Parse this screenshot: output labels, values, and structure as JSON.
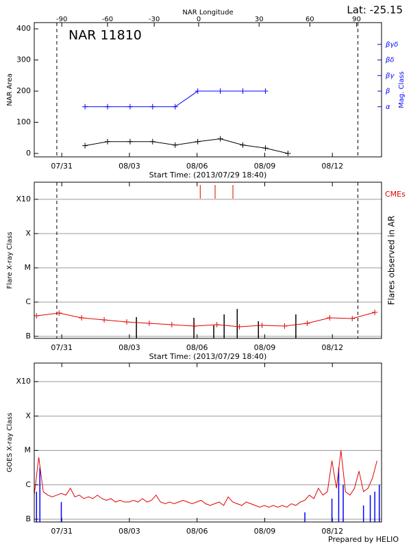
{
  "lat": "Lat: -25.15",
  "credit": "Prepared by HELIO",
  "chart_data": [
    {
      "type": "line",
      "title": "NAR 11810",
      "xlabel": "Start Time: (2013/07/29 18:40)",
      "ylabel": "NAR Area",
      "y2label": "Mag. Class",
      "x2label": "NAR Longitude",
      "xlim": [
        0,
        15.4
      ],
      "xticks": [
        {
          "value": 1.22,
          "label": "07/31"
        },
        {
          "value": 4.22,
          "label": "08/03"
        },
        {
          "value": 7.22,
          "label": "08/06"
        },
        {
          "value": 10.22,
          "label": "08/09"
        },
        {
          "value": 13.22,
          "label": "08/12"
        }
      ],
      "x2ticks": [
        {
          "value": 1.22,
          "label": "-90"
        },
        {
          "value": 3.25,
          "label": "-60"
        },
        {
          "value": 5.32,
          "label": "-30"
        },
        {
          "value": 7.29,
          "label": "0"
        },
        {
          "value": 9.97,
          "label": "30"
        },
        {
          "value": 12.22,
          "label": "60"
        },
        {
          "value": 14.29,
          "label": "90"
        }
      ],
      "ylim": [
        -11,
        420
      ],
      "yticks": [
        0,
        100,
        200,
        300,
        400
      ],
      "y2lim": [
        -11,
        420
      ],
      "y2ticks": [
        {
          "value": 150,
          "label": "α"
        },
        {
          "value": 200,
          "label": "β"
        },
        {
          "value": 250,
          "label": "βγ"
        },
        {
          "value": 300,
          "label": "βδ"
        },
        {
          "value": 350,
          "label": "βγδ"
        }
      ],
      "y2color": "#0000ff",
      "grid": false,
      "vlines": [
        1.0,
        14.35
      ],
      "series": [
        {
          "color": "#000000",
          "marker": "plus",
          "x": [
            2.25,
            3.25,
            4.25,
            5.25,
            6.25,
            7.25,
            8.25,
            9.25,
            10.25,
            11.25
          ],
          "values": [
            25,
            38,
            38,
            38,
            27,
            38,
            47,
            27,
            17,
            0
          ]
        },
        {
          "color": "#0000ff",
          "marker": "plus",
          "axis": "y2",
          "x": [
            2.25,
            3.25,
            4.25,
            5.25,
            6.25,
            7.25,
            8.25,
            9.25,
            10.25
          ],
          "values": [
            150,
            150,
            150,
            150,
            150,
            200,
            200,
            200,
            200
          ]
        }
      ]
    },
    {
      "type": "line",
      "xlabel": "Start Time: (2013/07/29 18:40)",
      "ylabel": "Flare X-ray Class",
      "y2label": "Flares observed in AR",
      "xlim": [
        0,
        15.4
      ],
      "xticks": [
        {
          "value": 1.22,
          "label": "07/31"
        },
        {
          "value": 4.22,
          "label": "08/03"
        },
        {
          "value": 7.22,
          "label": "08/06"
        },
        {
          "value": 10.22,
          "label": "08/09"
        },
        {
          "value": 13.22,
          "label": "08/12"
        }
      ],
      "ylim": [
        -7.06,
        -2.5
      ],
      "yticks": [
        {
          "value": -7,
          "label": "B"
        },
        {
          "value": -6,
          "label": "C"
        },
        {
          "value": -5,
          "label": "M"
        },
        {
          "value": -4,
          "label": "X"
        },
        {
          "value": -3,
          "label": "X10"
        }
      ],
      "grid": true,
      "vlines": [
        1.0,
        14.35
      ],
      "series": [
        {
          "color": "#e00000",
          "marker": "plus",
          "x": [
            0.1,
            1.1,
            2.1,
            3.1,
            4.1,
            5.1,
            6.1,
            7.1,
            8.1,
            9.1,
            10.1,
            11.1,
            12.1,
            13.1,
            14.1,
            15.1
          ],
          "values": [
            -6.4,
            -6.32,
            -6.46,
            -6.52,
            -6.58,
            -6.62,
            -6.66,
            -6.7,
            -6.66,
            -6.72,
            -6.68,
            -6.7,
            -6.62,
            -6.46,
            -6.48,
            -6.3
          ]
        }
      ],
      "bars": {
        "color": "#000000",
        "x": [
          4.53,
          7.08,
          7.96,
          8.42,
          9.0,
          9.94,
          11.6
        ],
        "values": [
          -6.44,
          -6.46,
          -6.68,
          -6.36,
          -6.2,
          -6.56,
          -6.36
        ]
      },
      "events": {
        "label": "CMEs",
        "color": "#e00000",
        "x": [
          7.36,
          8.02,
          8.81
        ]
      }
    },
    {
      "type": "line",
      "ylabel": "GOES X-ray Class",
      "xlim": [
        0,
        15.4
      ],
      "xticks": [
        {
          "value": 1.22,
          "label": "07/31"
        },
        {
          "value": 4.22,
          "label": "08/03"
        },
        {
          "value": 7.22,
          "label": "08/06"
        },
        {
          "value": 10.22,
          "label": "08/09"
        },
        {
          "value": 13.22,
          "label": "08/12"
        }
      ],
      "ylim": [
        -7.08,
        -2.46
      ],
      "yticks": [
        {
          "value": -7,
          "label": "B"
        },
        {
          "value": -6,
          "label": "C"
        },
        {
          "value": -5,
          "label": "M"
        },
        {
          "value": -4,
          "label": "X"
        },
        {
          "value": -3,
          "label": "X10"
        }
      ],
      "grid": true,
      "series": [
        {
          "color": "#e00000",
          "x": [
            0,
            0.2,
            0.4,
            0.6,
            0.8,
            1.0,
            1.2,
            1.4,
            1.6,
            1.8,
            2.0,
            2.2,
            2.4,
            2.6,
            2.8,
            3.0,
            3.2,
            3.4,
            3.6,
            3.8,
            4.0,
            4.2,
            4.4,
            4.6,
            4.8,
            5.0,
            5.2,
            5.4,
            5.6,
            5.8,
            6.0,
            6.2,
            6.4,
            6.6,
            6.8,
            7.0,
            7.2,
            7.4,
            7.6,
            7.8,
            8.0,
            8.2,
            8.4,
            8.6,
            8.8,
            9.0,
            9.2,
            9.4,
            9.6,
            9.8,
            10.0,
            10.2,
            10.4,
            10.6,
            10.8,
            11.0,
            11.2,
            11.4,
            11.6,
            11.8,
            12.0,
            12.2,
            12.4,
            12.6,
            12.8,
            13.0,
            13.2,
            13.4,
            13.6,
            13.8,
            14.0,
            14.2,
            14.4,
            14.6,
            14.8,
            15.0,
            15.2
          ],
          "values": [
            -6.3,
            -5.2,
            -6.2,
            -6.3,
            -6.35,
            -6.3,
            -6.25,
            -6.3,
            -6.1,
            -6.35,
            -6.3,
            -6.4,
            -6.35,
            -6.4,
            -6.3,
            -6.4,
            -6.45,
            -6.4,
            -6.5,
            -6.45,
            -6.5,
            -6.5,
            -6.45,
            -6.5,
            -6.4,
            -6.5,
            -6.45,
            -6.3,
            -6.5,
            -6.55,
            -6.5,
            -6.55,
            -6.5,
            -6.45,
            -6.5,
            -6.55,
            -6.5,
            -6.45,
            -6.55,
            -6.6,
            -6.55,
            -6.5,
            -6.6,
            -6.35,
            -6.5,
            -6.55,
            -6.6,
            -6.5,
            -6.55,
            -6.6,
            -6.65,
            -6.6,
            -6.65,
            -6.6,
            -6.65,
            -6.6,
            -6.65,
            -6.55,
            -6.6,
            -6.5,
            -6.45,
            -6.3,
            -6.4,
            -6.1,
            -6.3,
            -6.2,
            -5.3,
            -6.1,
            -5.0,
            -6.2,
            -6.3,
            -6.1,
            -5.6,
            -6.2,
            -6.1,
            -5.8,
            -5.3
          ]
        }
      ],
      "bars": {
        "color": "#0000ff",
        "x": [
          0.1,
          0.25,
          1.2,
          12.0,
          13.2,
          13.5,
          13.7,
          14.6,
          14.9,
          15.1,
          15.3
        ],
        "values": [
          -6.2,
          -5.5,
          -6.5,
          -6.8,
          -6.4,
          -5.5,
          -6.0,
          -6.6,
          -6.3,
          -6.2,
          -6.0
        ]
      }
    }
  ]
}
